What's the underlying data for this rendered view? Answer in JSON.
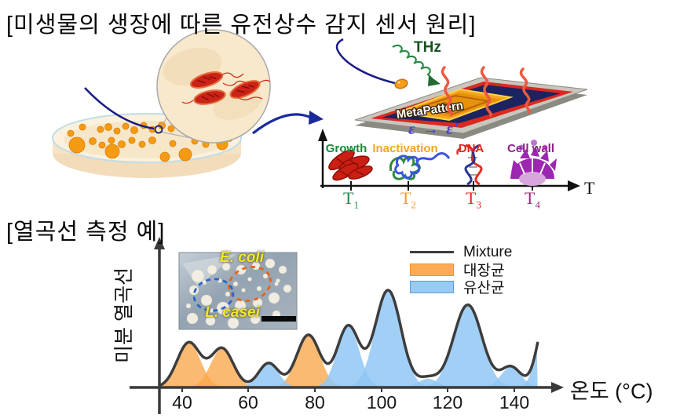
{
  "section1": {
    "title": "[미생물의 생장에 따른 유전상수 감지 센서 원리]",
    "sensor": {
      "thz_label": "THz",
      "chip_label": "MetaPattern",
      "epsilon_label": "ε → ε′"
    },
    "timeline": {
      "axis_label": "T",
      "stages": [
        {
          "label": "Growth",
          "color": "#168a3a",
          "t_label": "T",
          "t_sub": "1",
          "t_color": "#1f8a4c",
          "icon": "bacteria-icon"
        },
        {
          "label": "Inactivation",
          "color": "#f5a51e",
          "t_label": "T",
          "t_sub": "2",
          "t_color": "#f0a01e",
          "icon": "denatured-protein-icon"
        },
        {
          "label": "DNA",
          "color": "#e0241c",
          "t_label": "T",
          "t_sub": "3",
          "t_color": "#e02a20",
          "icon": "dna-icon"
        },
        {
          "label": "Cell wall",
          "color": "#8e1f8e",
          "t_label": "T",
          "t_sub": "4",
          "t_color": "#a82878",
          "icon": "cell-wall-icon"
        }
      ]
    }
  },
  "section2": {
    "title": "[열곡선 측정 예]",
    "inset": {
      "top_label": "E. coli",
      "bottom_label": "L. casei"
    },
    "legend": [
      {
        "label": "Mixture",
        "type": "line",
        "color": "#3d3d3d"
      },
      {
        "label": "대장균",
        "type": "area",
        "color": "#fbac55"
      },
      {
        "label": "유산균",
        "type": "area",
        "color": "#97cbf5"
      }
    ],
    "chart_data": {
      "type": "area",
      "xlabel": "온도 (°C)",
      "ylabel": "미분 열곡선",
      "x_ticks": [
        40,
        60,
        80,
        100,
        120,
        140
      ],
      "x_tick_labels": [
        "40",
        "60",
        "80",
        "100",
        "120",
        "140"
      ],
      "x_range": [
        33.5,
        147
      ],
      "y_range": [
        0,
        1.1
      ],
      "grid": false,
      "legend_position": "top-right",
      "series": [
        {
          "name": "Mixture",
          "type": "line",
          "color": "#3d3d3d",
          "definition": "sum of all component peaks"
        },
        {
          "name": "대장균 (E. coli)",
          "type": "area",
          "color": "#f9a94e",
          "fill_opacity": 0.8,
          "peaks": [
            {
              "temp_c": 42,
              "rel_height": 0.46,
              "sigma": 3.5
            },
            {
              "temp_c": 52,
              "rel_height": 0.4,
              "sigma": 3.4
            },
            {
              "temp_c": 78,
              "rel_height": 0.54,
              "sigma": 3.5
            }
          ]
        },
        {
          "name": "유산균 (L. casei)",
          "type": "area",
          "color": "#92c7f3",
          "fill_opacity": 0.85,
          "peaks": [
            {
              "temp_c": 66,
              "rel_height": 0.25,
              "sigma": 3.0
            },
            {
              "temp_c": 90,
              "rel_height": 0.63,
              "sigma": 3.3
            },
            {
              "temp_c": 102,
              "rel_height": 1.0,
              "sigma": 3.9
            },
            {
              "temp_c": 114,
              "rel_height": 0.09,
              "sigma": 2.8
            },
            {
              "temp_c": 126,
              "rel_height": 0.85,
              "sigma": 4.3
            },
            {
              "temp_c": 139,
              "rel_height": 0.21,
              "sigma": 3.0
            },
            {
              "temp_c": 150,
              "rel_height": 0.8,
              "sigma": 2.8
            }
          ]
        }
      ]
    }
  }
}
